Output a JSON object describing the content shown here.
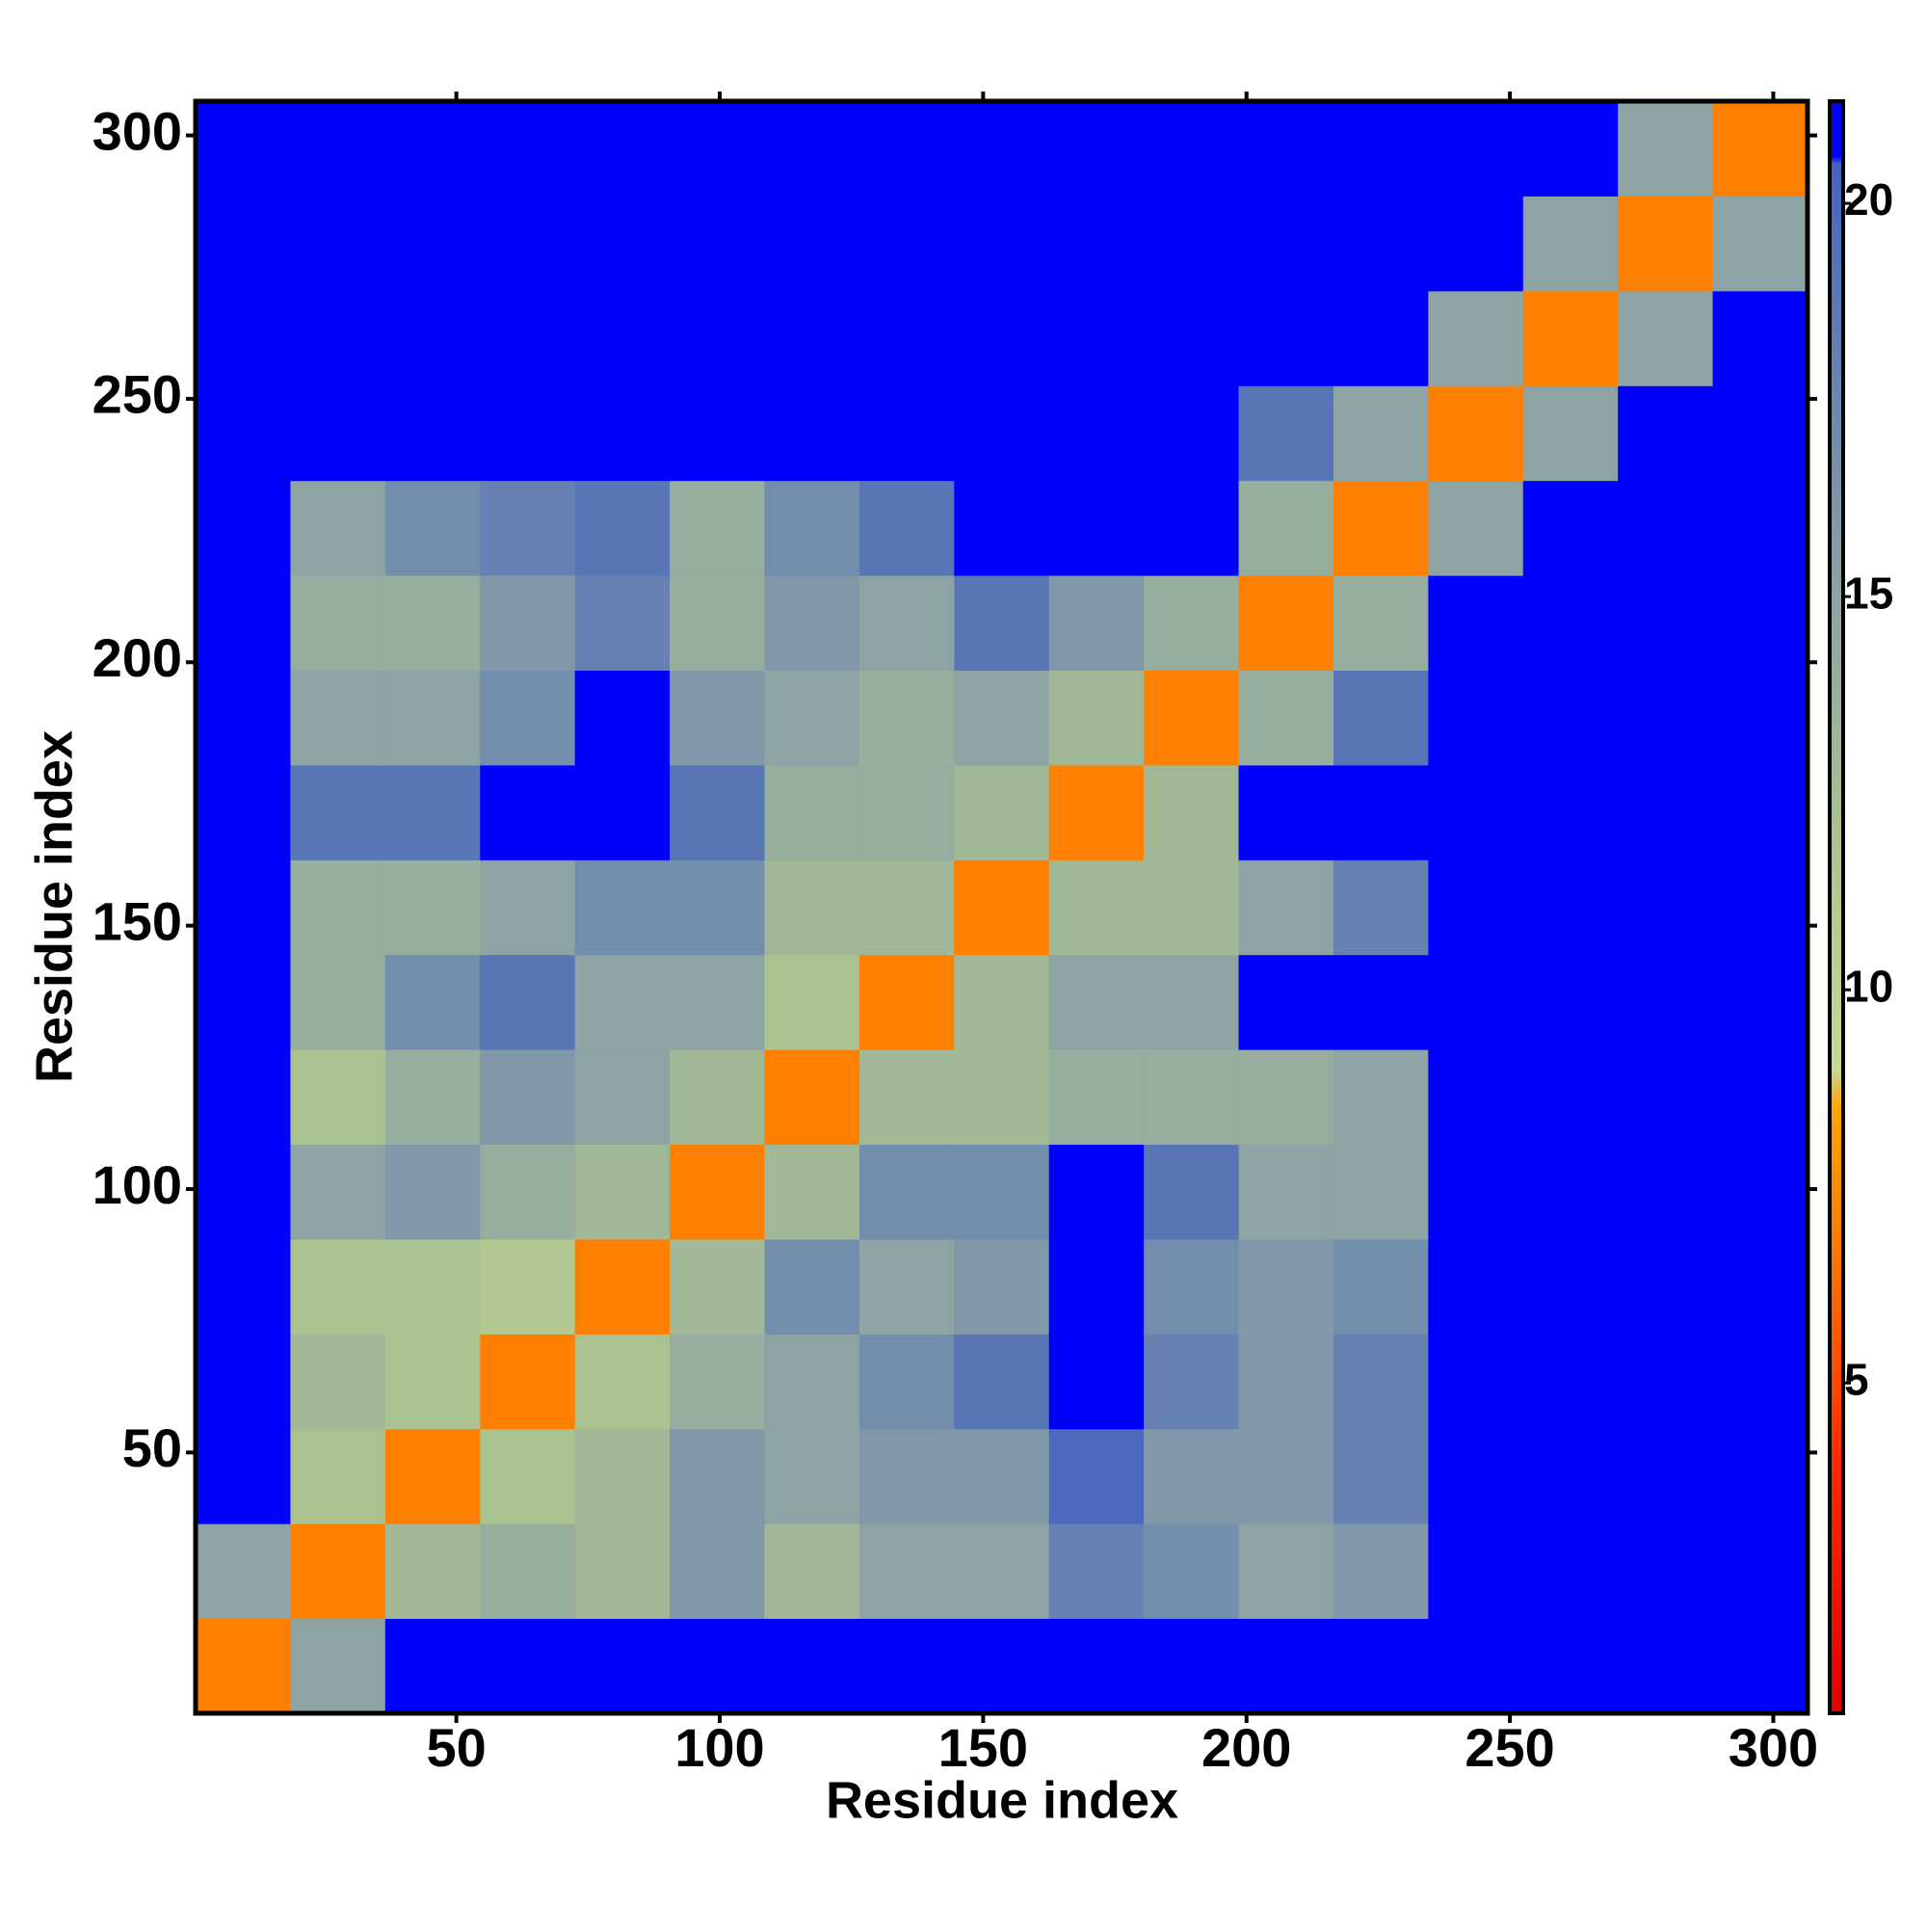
{
  "chart_data": {
    "type": "heatmap",
    "x_label": "Residue index",
    "y_label": "Residue index",
    "x": [
      9.5,
      27.5,
      45.5,
      63.5,
      81.5,
      99.5,
      117.5,
      135.5,
      153.5,
      171.5,
      189.5,
      207.5,
      225.5,
      243.5,
      261.5,
      279.5,
      297.5
    ],
    "y": [
      9.5,
      27.5,
      45.5,
      63.5,
      81.5,
      99.5,
      117.5,
      135.5,
      153.5,
      171.5,
      189.5,
      207.5,
      225.5,
      243.5,
      261.5,
      279.5,
      297.5
    ],
    "z": [
      [
        7,
        15,
        21,
        21,
        21,
        21,
        21,
        21,
        21,
        21,
        21,
        21,
        21,
        21,
        21,
        21,
        21
      ],
      [
        15,
        7,
        13,
        14,
        13,
        16,
        13,
        15,
        15,
        18,
        17,
        15,
        16,
        21,
        21,
        21,
        21
      ],
      [
        21,
        12,
        7,
        12,
        13,
        16,
        15,
        16,
        16,
        20,
        16,
        16,
        18,
        21,
        21,
        21,
        21
      ],
      [
        21,
        13,
        12,
        7,
        12,
        14,
        15,
        17,
        19,
        21,
        18,
        16,
        18,
        21,
        21,
        21,
        21
      ],
      [
        21,
        12,
        12,
        11,
        7,
        13,
        17,
        15,
        16,
        21,
        17,
        16,
        17,
        21,
        21,
        21,
        21
      ],
      [
        21,
        15,
        16,
        14,
        13,
        7,
        13,
        17,
        17,
        21,
        19,
        15,
        15,
        21,
        21,
        21,
        21
      ],
      [
        21,
        12,
        14,
        16,
        15,
        13,
        7,
        13,
        13,
        14,
        14,
        14,
        15,
        21,
        21,
        21,
        21
      ],
      [
        21,
        14,
        17,
        19,
        15,
        15,
        12,
        7,
        13,
        15,
        15,
        21,
        21,
        21,
        21,
        21,
        21
      ],
      [
        21,
        14,
        14,
        15,
        17,
        17,
        13,
        13,
        7,
        13,
        13,
        15,
        18,
        21,
        21,
        21,
        21
      ],
      [
        21,
        19,
        19,
        21,
        21,
        19,
        14,
        14,
        13,
        7,
        13,
        21,
        21,
        21,
        21,
        21,
        21
      ],
      [
        21,
        15,
        15,
        17,
        21,
        16,
        15,
        14,
        15,
        13,
        7,
        14,
        19,
        21,
        21,
        21,
        21
      ],
      [
        21,
        14,
        14,
        16,
        18,
        14,
        16,
        15,
        19,
        16,
        14,
        7,
        14,
        21,
        21,
        21,
        21
      ],
      [
        21,
        15,
        17,
        18,
        19,
        14,
        17,
        19,
        21,
        21,
        21,
        14,
        7,
        15,
        21,
        21,
        21
      ],
      [
        21,
        21,
        21,
        21,
        21,
        21,
        21,
        21,
        21,
        21,
        21,
        19,
        15,
        7,
        15,
        21,
        21
      ],
      [
        21,
        21,
        21,
        21,
        21,
        21,
        21,
        21,
        21,
        21,
        21,
        21,
        21,
        15,
        7,
        15,
        21
      ],
      [
        21,
        21,
        21,
        21,
        21,
        21,
        21,
        21,
        21,
        21,
        21,
        21,
        21,
        21,
        15,
        7,
        15
      ],
      [
        21,
        21,
        21,
        21,
        21,
        21,
        21,
        21,
        21,
        21,
        21,
        21,
        21,
        21,
        21,
        15,
        7
      ]
    ],
    "xlim": [
      0.5,
      306.5
    ],
    "ylim": [
      0.5,
      306.5
    ],
    "xticks": [
      50,
      100,
      150,
      200,
      250,
      300
    ],
    "yticks": [
      50,
      100,
      150,
      200,
      250,
      300
    ],
    "colorscale": [
      [
        0.8,
        "#e00000"
      ],
      [
        4,
        "#ff2a00"
      ],
      [
        7,
        "#ff8000"
      ],
      [
        8.5,
        "#ffa500"
      ],
      [
        9,
        "#c6d898"
      ],
      [
        12,
        "#a9c28f"
      ],
      [
        15,
        "#8ea3a4"
      ],
      [
        19,
        "#5876b6"
      ],
      [
        20.5,
        "#4462c0"
      ],
      [
        20.6,
        "#0000ff"
      ],
      [
        21.3,
        "#0000ff"
      ]
    ],
    "colorbar": {
      "lim": [
        0.8,
        21.3
      ],
      "ticks": [
        5,
        10,
        15,
        20
      ]
    }
  }
}
